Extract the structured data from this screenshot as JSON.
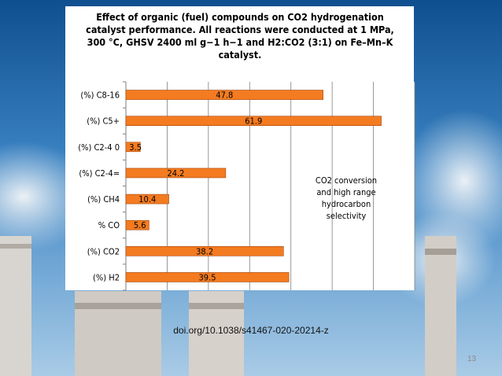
{
  "slide": {
    "doi": "doi.org/10.1038/s41467-020-20214-z",
    "page_number": "13"
  },
  "chart_data": {
    "type": "bar",
    "orientation": "horizontal",
    "title": "Effect of organic (fuel) compounds on CO2 hydrogenation catalyst performance. All reactions were conducted at 1 MPa, 300 °C, GHSV 2400 ml g−1 h−1 and H2:CO2 (3:1) on Fe–Mn–K catalyst.",
    "title_lines": [
      "Effect of organic (fuel) compounds on CO2 hydrogenation",
      "catalyst performance. All reactions were conducted at 1 MPa,",
      "300 °C, GHSV 2400 ml g−1 h−1 and H2:CO2 (3:1) on Fe–Mn–K",
      "catalyst."
    ],
    "categories": [
      "(%) C8-16",
      "(%) C5+",
      "(%)  C2-4 0",
      "(%) C2-4=",
      "(%) CH4",
      "% CO",
      "(%) CO2",
      "(%) H2"
    ],
    "values": [
      47.8,
      61.9,
      3.5,
      24.2,
      10.4,
      5.6,
      38.2,
      39.5
    ],
    "data_labels": [
      "47.8",
      "61.9",
      "3.5",
      "24.2",
      "10.4",
      "5.6",
      "38.2",
      "39.5"
    ],
    "xlim": [
      0,
      70
    ],
    "grid": true,
    "bar_color": "#f47b20",
    "bar_edge": "#a0430a",
    "annotation_lines": [
      "CO2 conversion",
      "and high range",
      "hydrocarbon",
      "selectivity"
    ]
  }
}
